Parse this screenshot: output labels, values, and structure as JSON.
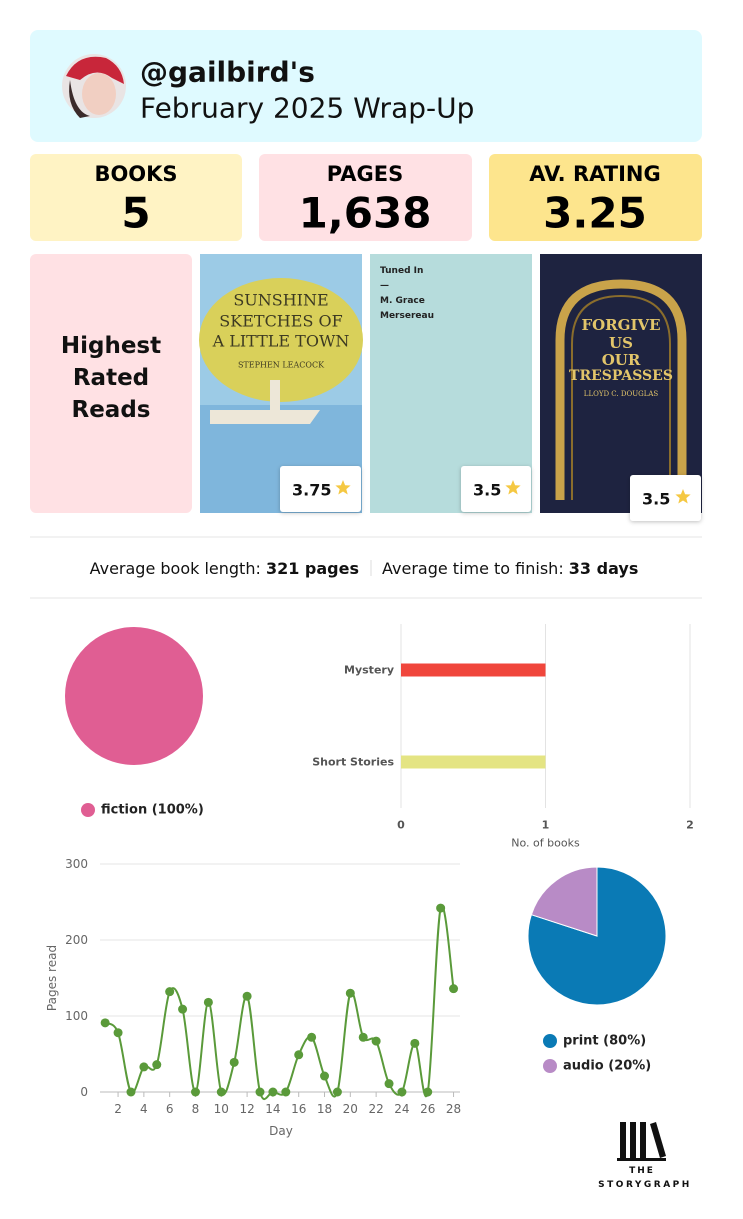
{
  "header": {
    "handle": "@gailbird's",
    "subtitle": "February 2025 Wrap-Up"
  },
  "stats": [
    {
      "label": "BOOKS",
      "value": "5"
    },
    {
      "label": "PAGES",
      "value": "1,638"
    },
    {
      "label": "AV. RATING",
      "value": "3.25"
    }
  ],
  "highest_rated": {
    "title": "Highest Rated Reads",
    "books": [
      {
        "title_lines": [
          "SUNSHINE",
          "SKETCHES OF",
          "A LITTLE TOWN"
        ],
        "author": "STEPHEN LEACOCK",
        "rating": "3.75"
      },
      {
        "title_lines": [
          "Tuned In",
          "—",
          "M. Grace",
          "Mersereau"
        ],
        "rating": "3.5"
      },
      {
        "title_lines": [
          "FORGIVE",
          "US",
          "OUR",
          "TRESPASSES"
        ],
        "author": "LLOYD C. DOUGLAS",
        "rating": "3.5"
      }
    ]
  },
  "averages": [
    {
      "label": "Average book length:",
      "value": "321 pages"
    },
    {
      "label": "Average time to finish:",
      "value": "33 days"
    }
  ],
  "chart_data": [
    {
      "type": "pie",
      "categories": [
        "fiction (100%)"
      ],
      "values": [
        100
      ],
      "colors": [
        "#e05e93"
      ]
    },
    {
      "type": "bar",
      "orientation": "horizontal",
      "categories": [
        "Mystery",
        "Short Stories"
      ],
      "values": [
        1,
        1
      ],
      "colors": [
        "#f0463c",
        "#e4e483"
      ],
      "xlim": [
        0,
        2
      ],
      "xticks": [
        0,
        1,
        2
      ],
      "x_label": "No. of books",
      "grid": true
    },
    {
      "type": "line",
      "x": [
        1,
        2,
        3,
        4,
        5,
        6,
        7,
        8,
        9,
        10,
        11,
        12,
        13,
        14,
        15,
        16,
        17,
        18,
        19,
        20,
        21,
        22,
        23,
        24,
        25,
        26,
        27,
        28
      ],
      "values": [
        91,
        78,
        0,
        33,
        36,
        132,
        109,
        0,
        118,
        0,
        39,
        126,
        0,
        0,
        0,
        49,
        72,
        21,
        0,
        130,
        72,
        67,
        11,
        0,
        64,
        0,
        242,
        136
      ],
      "color": "#5a9a3a",
      "xlim": [
        0.6,
        28.5
      ],
      "xticks": [
        2,
        4,
        6,
        8,
        10,
        12,
        14,
        16,
        18,
        20,
        22,
        24,
        26,
        28
      ],
      "ylim": [
        0,
        300
      ],
      "yticks": [
        0,
        100,
        200,
        300
      ],
      "x_label": "Day",
      "y_label": "Pages read",
      "grid": true
    },
    {
      "type": "pie",
      "categories": [
        "print (80%)",
        "audio (20%)"
      ],
      "values": [
        80,
        20
      ],
      "colors": [
        "#0a7ab5",
        "#b88bc6"
      ]
    }
  ],
  "footer": {
    "brand_top": "THE",
    "brand": "STORYGRAPH"
  }
}
